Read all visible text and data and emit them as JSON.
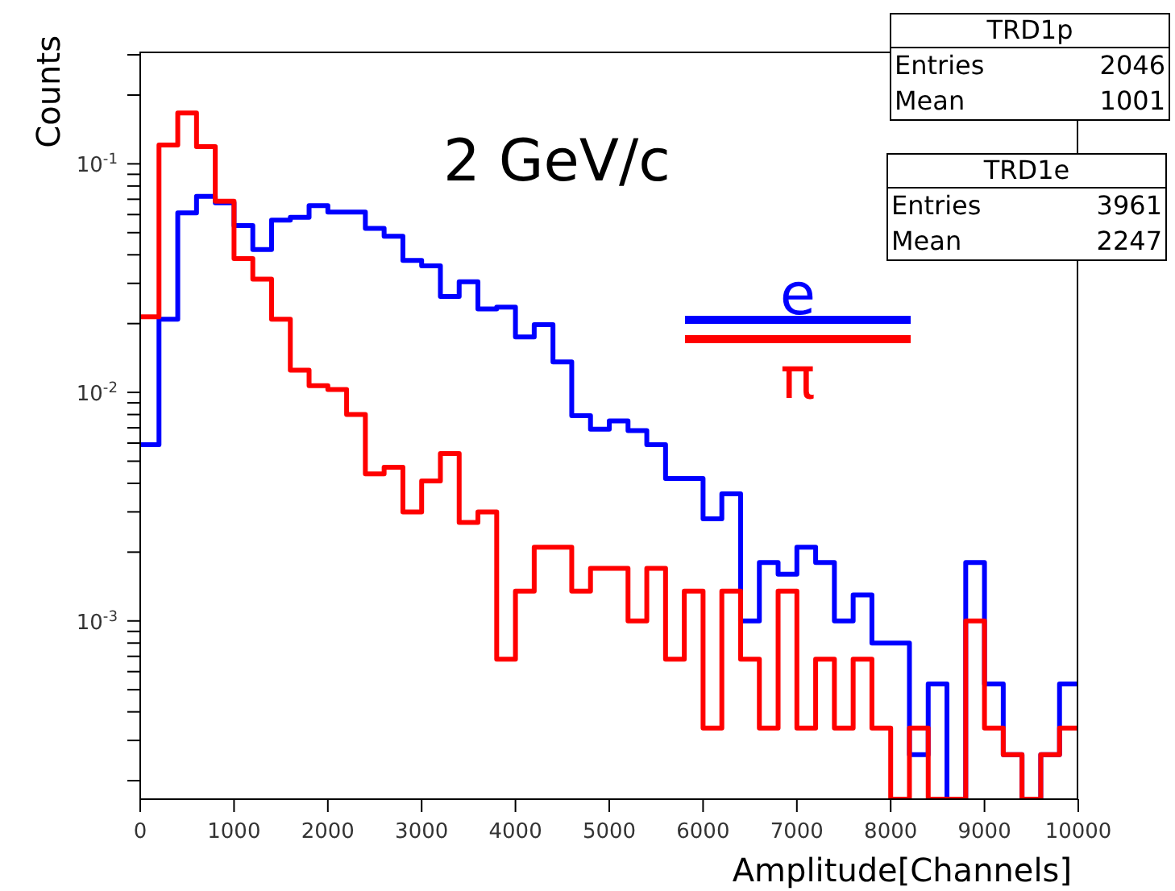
{
  "chart_data": {
    "type": "histogram",
    "xlabel": "Amplitude[Channels]",
    "ylabel": "Counts",
    "annotations": [
      "2 GeV/c",
      "TRD1p",
      "Entries",
      "2046",
      "Mean",
      "1001",
      "TRD1e",
      "Entries",
      "3961",
      "Mean",
      "2247"
    ],
    "bins": [
      0,
      200,
      400,
      600,
      800,
      1000,
      1200,
      1400,
      1600,
      1800,
      2000,
      2200,
      2400,
      2600,
      2800,
      3000,
      3200,
      3400,
      3600,
      3800,
      4000,
      4200,
      4400,
      4600,
      4800,
      5000,
      5200,
      5400,
      5600,
      5800,
      6000,
      6200,
      6400,
      6600,
      6800,
      7000,
      7200,
      7400,
      7600,
      7800,
      8000,
      8200,
      8400,
      8600,
      8800,
      9000,
      9200,
      9400,
      9600,
      9800,
      10000
    ],
    "series": [
      {
        "name": "e",
        "color": "#0000ff",
        "values": [
          0.0059,
          0.0209,
          0.061,
          0.072,
          0.0675,
          0.0537,
          0.0422,
          0.0567,
          0.0583,
          0.0656,
          0.0615,
          0.0615,
          0.0522,
          0.0482,
          0.0378,
          0.0358,
          0.0263,
          0.0305,
          0.0232,
          0.0236,
          0.0175,
          0.0198,
          0.0136,
          0.0079,
          0.0069,
          0.0075,
          0.0068,
          0.0059,
          0.0042,
          0.0042,
          0.0028,
          0.0036,
          0.001,
          0.0018,
          0.0016,
          0.0021,
          0.0018,
          0.001,
          0.0013,
          0.0008,
          0.0008,
          0.00026,
          0.00053,
          null,
          0.0018,
          0.00053,
          0.00026,
          null,
          0.00026,
          0.00053
        ]
      },
      {
        "name": "π",
        "color": "#ff0000",
        "values": [
          0.0214,
          0.121,
          0.167,
          0.119,
          0.0686,
          0.0385,
          0.0313,
          0.0209,
          0.0125,
          0.0107,
          0.0103,
          0.008,
          0.0044,
          0.0047,
          0.003,
          0.0041,
          0.0054,
          0.0027,
          0.003,
          0.00068,
          0.00135,
          0.0021,
          0.0021,
          0.00135,
          0.0017,
          0.0017,
          0.001,
          0.0017,
          0.00068,
          0.00135,
          0.00034,
          0.00135,
          0.00068,
          0.00034,
          0.00135,
          0.00034,
          0.00068,
          0.00034,
          0.00068,
          0.00034,
          null,
          0.00034,
          null,
          null,
          0.001,
          0.00034,
          0.00026,
          null,
          0.00026,
          0.00034
        ]
      }
    ],
    "log": true,
    "ylim": [
      0.000166,
      0.31
    ],
    "yticks": [
      {
        "value": 0.0002,
        "label": null
      },
      {
        "value": 0.0003,
        "label": null
      },
      {
        "value": 0.0004,
        "label": null
      },
      {
        "value": 0.0005,
        "label": null
      },
      {
        "value": 0.0006,
        "label": null
      },
      {
        "value": 0.0007,
        "label": null
      },
      {
        "value": 0.0008,
        "label": null
      },
      {
        "value": 0.0009,
        "label": null
      },
      {
        "value": 0.001,
        "label": "10$^{-3}$"
      },
      {
        "value": 0.002,
        "label": null
      },
      {
        "value": 0.003,
        "label": null
      },
      {
        "value": 0.004,
        "label": null
      },
      {
        "value": 0.005,
        "label": null
      },
      {
        "value": 0.006,
        "label": null
      },
      {
        "value": 0.007,
        "label": null
      },
      {
        "value": 0.008,
        "label": null
      },
      {
        "value": 0.009,
        "label": null
      },
      {
        "value": 0.01,
        "label": "10$^{-2}$"
      },
      {
        "value": 0.02,
        "label": null
      },
      {
        "value": 0.03,
        "label": null
      },
      {
        "value": 0.04,
        "label": null
      },
      {
        "value": 0.05,
        "label": null
      },
      {
        "value": 0.06,
        "label": null
      },
      {
        "value": 0.07,
        "label": null
      },
      {
        "value": 0.08,
        "label": null
      },
      {
        "value": 0.09,
        "label": null
      },
      {
        "value": 0.1,
        "label": "10$^{-1}$"
      },
      {
        "value": 0.2,
        "label": null
      },
      {
        "value": 0.3,
        "label": null
      }
    ],
    "xlim": [
      0,
      10000
    ],
    "xticks": [
      0,
      1000,
      2000,
      3000,
      4000,
      5000,
      6000,
      7000,
      8000,
      9000,
      10000
    ],
    "grid": false,
    "legend": "right",
    "line_style": "solid",
    "marker": "none"
  }
}
